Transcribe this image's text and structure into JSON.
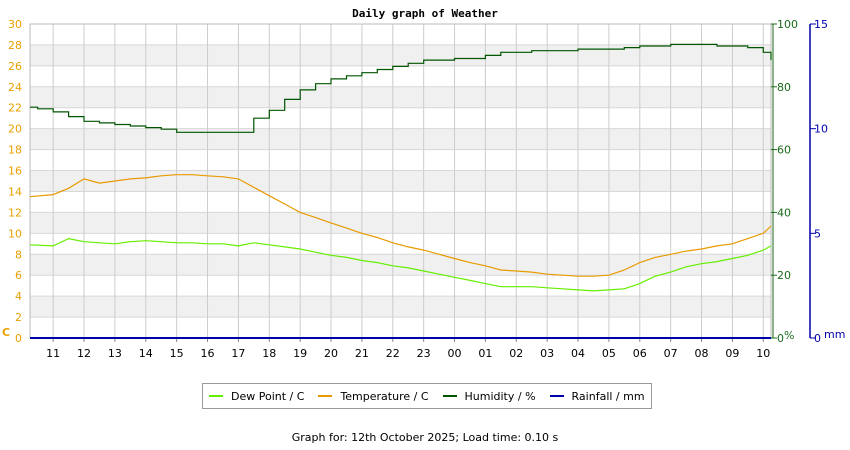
{
  "chart_data": {
    "type": "line",
    "title": "Daily graph of Weather",
    "x_labels": [
      "11",
      "12",
      "13",
      "14",
      "15",
      "16",
      "17",
      "18",
      "19",
      "20",
      "21",
      "22",
      "23",
      "00",
      "01",
      "02",
      "03",
      "04",
      "05",
      "06",
      "07",
      "08",
      "09",
      "10"
    ],
    "x_range": [
      10.25,
      34.25
    ],
    "axes": {
      "left": {
        "unit": "C",
        "range": [
          0,
          30
        ],
        "ticks": [
          0,
          2,
          4,
          6,
          8,
          10,
          12,
          14,
          16,
          18,
          20,
          22,
          24,
          26,
          28,
          30
        ],
        "color": "#e8a000"
      },
      "right1": {
        "unit": "%",
        "range": [
          0,
          100
        ],
        "ticks": [
          0,
          20,
          40,
          60,
          80,
          100
        ],
        "color": "#1a6b1a"
      },
      "right2": {
        "unit": "mm",
        "range": [
          0,
          15
        ],
        "ticks": [
          0,
          5,
          10,
          15
        ],
        "color": "#0000aa"
      }
    },
    "grid": true,
    "legend_position": "bottom-center",
    "series": [
      {
        "name": "Dew Point / C",
        "color": "#66ee00",
        "axis": "left",
        "x": [
          10.25,
          11,
          11.5,
          12,
          12.5,
          13,
          13.5,
          14,
          14.5,
          15,
          15.5,
          16,
          16.5,
          17,
          17.5,
          18,
          18.5,
          19,
          19.5,
          20,
          20.5,
          21,
          21.5,
          22,
          22.5,
          23,
          23.5,
          24,
          24.5,
          25,
          25.5,
          26,
          26.5,
          27,
          27.5,
          28,
          28.5,
          29,
          29.5,
          30,
          30.5,
          31,
          31.5,
          32,
          32.5,
          33,
          33.5,
          34,
          34.25
        ],
        "y": [
          8.9,
          8.8,
          9.5,
          9.2,
          9.1,
          9.0,
          9.2,
          9.3,
          9.2,
          9.1,
          9.1,
          9.0,
          9.0,
          8.8,
          9.1,
          8.9,
          8.7,
          8.5,
          8.2,
          7.9,
          7.7,
          7.4,
          7.2,
          6.9,
          6.7,
          6.4,
          6.1,
          5.8,
          5.5,
          5.2,
          4.9,
          4.9,
          4.9,
          4.8,
          4.7,
          4.6,
          4.5,
          4.6,
          4.7,
          5.2,
          5.9,
          6.3,
          6.8,
          7.1,
          7.3,
          7.6,
          7.9,
          8.4,
          8.8
        ]
      },
      {
        "name": "Temperature / C",
        "color": "#e89a00",
        "axis": "left",
        "x": [
          10.25,
          11,
          11.5,
          12,
          12.5,
          13,
          13.5,
          14,
          14.5,
          15,
          15.5,
          16,
          16.5,
          17,
          17.5,
          18,
          18.5,
          19,
          19.5,
          20,
          20.5,
          21,
          21.5,
          22,
          22.5,
          23,
          23.5,
          24,
          24.5,
          25,
          25.5,
          26,
          26.5,
          27,
          27.5,
          28,
          28.5,
          29,
          29.5,
          30,
          30.5,
          31,
          31.5,
          32,
          32.5,
          33,
          33.5,
          34,
          34.25
        ],
        "y": [
          13.5,
          13.7,
          14.3,
          15.2,
          14.8,
          15.0,
          15.2,
          15.3,
          15.5,
          15.6,
          15.6,
          15.5,
          15.4,
          15.2,
          14.4,
          13.6,
          12.8,
          12.0,
          11.5,
          11.0,
          10.5,
          10.0,
          9.6,
          9.1,
          8.7,
          8.4,
          8.0,
          7.6,
          7.2,
          6.9,
          6.5,
          6.4,
          6.3,
          6.1,
          6.0,
          5.9,
          5.9,
          6.0,
          6.5,
          7.2,
          7.7,
          8.0,
          8.3,
          8.5,
          8.8,
          9.0,
          9.5,
          10.0,
          10.7
        ]
      },
      {
        "name": "Humidity / %",
        "color": "#005500",
        "axis": "right1",
        "x": [
          10.25,
          10.5,
          11,
          11.5,
          12,
          12.5,
          13,
          13.5,
          14,
          14.5,
          15,
          15.5,
          16,
          16.5,
          17,
          17.5,
          18,
          18.5,
          19,
          19.5,
          20,
          20.5,
          21,
          21.5,
          22,
          22.5,
          23,
          23.5,
          24,
          24.5,
          25,
          25.5,
          26,
          26.5,
          27,
          27.5,
          28,
          28.5,
          29,
          29.5,
          30,
          30.5,
          31,
          31.5,
          32,
          32.5,
          33,
          33.5,
          34,
          34.25
        ],
        "y": [
          73.5,
          73,
          72,
          70.5,
          69,
          68.5,
          68,
          67.5,
          67,
          66.5,
          65.5,
          65.5,
          65.5,
          65.5,
          65.5,
          70,
          72.5,
          76,
          79,
          81,
          82.5,
          83.5,
          84.5,
          85.5,
          86.5,
          87.5,
          88.5,
          88.5,
          89,
          89,
          90,
          91,
          91,
          91.5,
          91.5,
          91.5,
          92,
          92,
          92,
          92.5,
          93,
          93,
          93.5,
          93.5,
          93.5,
          93,
          93,
          92.5,
          91,
          88.5
        ]
      },
      {
        "name": "Rainfall / mm",
        "color": "#0000aa",
        "axis": "right2",
        "x": [
          10.25,
          34.25
        ],
        "y": [
          0,
          0
        ]
      }
    ]
  },
  "footer": "Graph for: 12th October 2025; Load time: 0.10 s"
}
